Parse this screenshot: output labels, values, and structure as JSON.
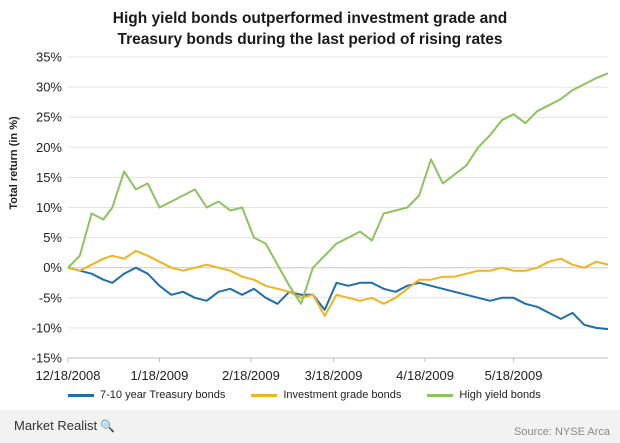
{
  "title_lines": [
    "High yield bonds outperformed investment grade and",
    "Treasury bonds during the last period of rising rates"
  ],
  "brand": {
    "name": "Market Realist",
    "icon": "magnifier-icon"
  },
  "source": "Source: NYSE Arca",
  "chart_data": {
    "type": "line",
    "title": "High yield bonds outperformed investment grade and Treasury bonds during the last period of rising rates",
    "ylabel": "Total return (in %)",
    "xlabel": "",
    "ylim": [
      -15,
      35
    ],
    "yticks": [
      35,
      30,
      25,
      20,
      15,
      10,
      5,
      0,
      -5,
      -10,
      -15
    ],
    "ytick_labels": [
      "35%",
      "30%",
      "25%",
      "20%",
      "15%",
      "10%",
      "5%",
      "0%",
      "-5%",
      "-10%",
      "-15%"
    ],
    "x_domain": [
      "2008-12-18",
      "2009-06-19"
    ],
    "xtick_labels": [
      "12/18/2008",
      "1/18/2009",
      "2/18/2009",
      "3/18/2009",
      "4/18/2009",
      "5/18/2009"
    ],
    "xtick_dates": [
      "2008-12-18",
      "2009-01-18",
      "2009-02-18",
      "2009-03-18",
      "2009-04-18",
      "2009-05-18"
    ],
    "grid": {
      "horizontal": true,
      "vertical": false
    },
    "legend_position": "bottom",
    "x": [
      "2008-12-18",
      "2008-12-22",
      "2008-12-26",
      "2008-12-30",
      "2009-01-02",
      "2009-01-06",
      "2009-01-10",
      "2009-01-14",
      "2009-01-18",
      "2009-01-22",
      "2009-01-26",
      "2009-01-30",
      "2009-02-03",
      "2009-02-07",
      "2009-02-11",
      "2009-02-15",
      "2009-02-19",
      "2009-02-23",
      "2009-02-27",
      "2009-03-03",
      "2009-03-07",
      "2009-03-11",
      "2009-03-15",
      "2009-03-19",
      "2009-03-23",
      "2009-03-27",
      "2009-03-31",
      "2009-04-04",
      "2009-04-08",
      "2009-04-12",
      "2009-04-16",
      "2009-04-20",
      "2009-04-24",
      "2009-04-28",
      "2009-05-02",
      "2009-05-06",
      "2009-05-10",
      "2009-05-14",
      "2009-05-18",
      "2009-05-22",
      "2009-05-26",
      "2009-05-30",
      "2009-06-03",
      "2009-06-07",
      "2009-06-11",
      "2009-06-15",
      "2009-06-19"
    ],
    "series": [
      {
        "name": "7-10 year Treasury bonds",
        "color": "#1f6fae",
        "values": [
          0,
          -0.5,
          -1.0,
          -2.0,
          -2.5,
          -1.0,
          0.0,
          -1.0,
          -3.0,
          -4.5,
          -4.0,
          -5.0,
          -5.5,
          -4.0,
          -3.5,
          -4.5,
          -3.5,
          -5.0,
          -6.0,
          -4.0,
          -4.5,
          -4.5,
          -7.0,
          -2.5,
          -3.0,
          -2.5,
          -2.5,
          -3.5,
          -4.0,
          -3.0,
          -2.5,
          -3.0,
          -3.5,
          -4.0,
          -4.5,
          -5.0,
          -5.5,
          -5.0,
          -5.0,
          -6.0,
          -6.5,
          -7.5,
          -8.5,
          -7.5,
          -9.5,
          -10.0,
          -10.2
        ]
      },
      {
        "name": "Investment grade bonds",
        "color": "#f0b41c",
        "values": [
          0,
          -0.5,
          0.5,
          1.5,
          2.0,
          1.5,
          2.8,
          2.0,
          1.0,
          0.0,
          -0.5,
          0.0,
          0.5,
          0.0,
          -0.5,
          -1.5,
          -2.0,
          -3.0,
          -3.5,
          -4.0,
          -5.0,
          -4.5,
          -8.0,
          -4.5,
          -5.0,
          -5.5,
          -5.0,
          -6.0,
          -5.0,
          -3.5,
          -2.0,
          -2.0,
          -1.5,
          -1.5,
          -1.0,
          -0.5,
          -0.5,
          0.0,
          -0.5,
          -0.5,
          0.0,
          1.0,
          1.5,
          0.5,
          0.0,
          1.0,
          0.5
        ]
      },
      {
        "name": "High yield bonds",
        "color": "#8dc35d",
        "values": [
          0,
          2.0,
          9.0,
          8.0,
          10.0,
          16.0,
          13.0,
          14.0,
          10.0,
          11.0,
          12.0,
          13.0,
          10.0,
          11.0,
          9.5,
          10.0,
          5.0,
          4.0,
          0.5,
          -3.0,
          -6.0,
          0.0,
          2.0,
          4.0,
          5.0,
          6.0,
          4.5,
          9.0,
          9.5,
          10.0,
          12.0,
          18.0,
          14.0,
          15.5,
          17.0,
          20.0,
          22.0,
          24.5,
          25.5,
          24.0,
          26.0,
          27.0,
          28.0,
          29.5,
          30.5,
          31.5,
          32.3
        ]
      }
    ]
  }
}
